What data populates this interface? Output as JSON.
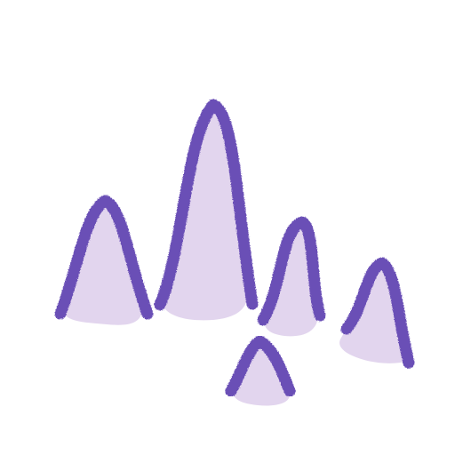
{
  "colors": {
    "background": "#ffffff",
    "outline": "#6a4fb6",
    "fill": "#e2d5ee"
  },
  "shapes": [
    "left-peak",
    "tall-center-peak",
    "middle-small-peak",
    "right-peak",
    "front-small-peak"
  ]
}
